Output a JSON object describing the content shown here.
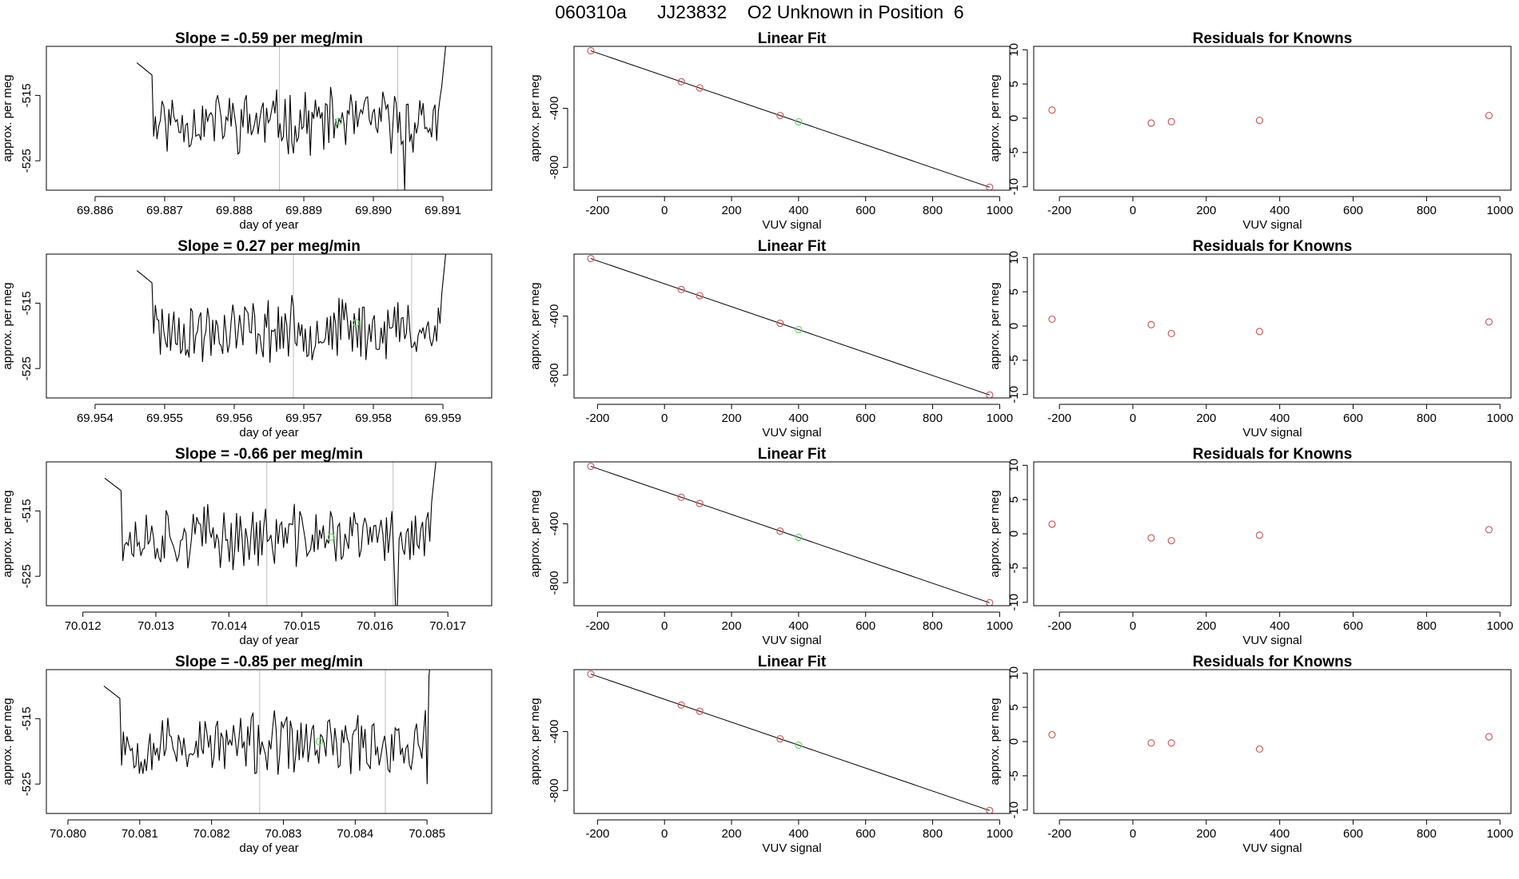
{
  "header": {
    "run_id": "060310a",
    "tank_id": "JJ23832",
    "description": "O2 Unknown in Position  6"
  },
  "colors": {
    "line": "#000000",
    "guide": "#bebebe",
    "known_point": "#cd5c5c",
    "unknown_point": "#66dd66"
  },
  "chart_data": [
    {
      "type": "line",
      "row": 0,
      "panel": "timeseries",
      "title": "Slope =  -0.59  per meg/min",
      "xlabel": "day of year",
      "ylabel": "approx. per meg",
      "xlim": [
        69.8853,
        69.8917
      ],
      "ylim": [
        -529.5,
        -507.5
      ],
      "xticks": [
        69.886,
        69.887,
        69.888,
        69.889,
        69.89,
        69.891
      ],
      "xtick_labels": [
        "69.886",
        "69.887",
        "69.888",
        "69.889",
        "69.890",
        "69.891"
      ],
      "yticks": [
        -525,
        -515
      ],
      "ytick_labels": [
        "-525",
        "-515"
      ],
      "x_start": 69.8866,
      "x_end": 69.8912,
      "seed": 11,
      "spike_at": 69.89045,
      "spike_value": -529.5,
      "vlines": [
        69.88865,
        69.89035
      ],
      "unknown_point": {
        "x": 69.8895,
        "y": -519.0
      }
    },
    {
      "type": "line",
      "row": 1,
      "panel": "timeseries",
      "title": "Slope =  0.27  per meg/min",
      "xlabel": "day of year",
      "ylabel": "approx. per meg",
      "xlim": [
        69.9533,
        69.9597
      ],
      "ylim": [
        -529.5,
        -507.5
      ],
      "xticks": [
        69.954,
        69.955,
        69.956,
        69.957,
        69.958,
        69.959
      ],
      "xtick_labels": [
        "69.954",
        "69.955",
        "69.956",
        "69.957",
        "69.958",
        "69.959"
      ],
      "yticks": [
        -525,
        -515
      ],
      "ytick_labels": [
        "-525",
        "-515"
      ],
      "x_start": 69.9546,
      "x_end": 69.9592,
      "seed": 23,
      "spike_at": 69.95555,
      "spike_value": -524.0,
      "vlines": [
        69.95685,
        69.95855
      ],
      "unknown_point": {
        "x": 69.95775,
        "y": -518.0
      }
    },
    {
      "type": "line",
      "row": 2,
      "panel": "timeseries",
      "title": "Slope =  -0.66  per meg/min",
      "xlabel": "day of year",
      "ylabel": "approx. per meg",
      "xlim": [
        70.0115,
        70.0176
      ],
      "ylim": [
        -529.5,
        -507.5
      ],
      "xticks": [
        70.012,
        70.013,
        70.014,
        70.015,
        70.016,
        70.017
      ],
      "xtick_labels": [
        "70.012",
        "70.013",
        "70.014",
        "70.015",
        "70.016",
        "70.017"
      ],
      "yticks": [
        -525,
        -515
      ],
      "ytick_labels": [
        "-525",
        "-515"
      ],
      "x_start": 70.0123,
      "x_end": 70.017,
      "seed": 37,
      "spike_at": 70.0163,
      "spike_value": -529.5,
      "vlines": [
        70.01452,
        70.01625
      ],
      "unknown_point": {
        "x": 70.0154,
        "y": -519.0
      }
    },
    {
      "type": "line",
      "row": 3,
      "panel": "timeseries",
      "title": "Slope =  -0.85  per meg/min",
      "xlabel": "day of year",
      "ylabel": "approx. per meg",
      "xlim": [
        70.0797,
        70.0859
      ],
      "ylim": [
        -529.5,
        -507.5
      ],
      "xticks": [
        70.08,
        70.081,
        70.082,
        70.083,
        70.084,
        70.085
      ],
      "xtick_labels": [
        "70.080",
        "70.081",
        "70.082",
        "70.083",
        "70.084",
        "70.085"
      ],
      "yticks": [
        -525,
        -515
      ],
      "ytick_labels": [
        "-525",
        "-515"
      ],
      "x_start": 70.0805,
      "x_end": 70.0852,
      "seed": 53,
      "spike_at": 70.085,
      "spike_value": -525.0,
      "vlines": [
        70.08267,
        70.08442
      ],
      "unknown_point": {
        "x": 70.0835,
        "y": -518.5
      }
    },
    {
      "type": "scatter",
      "row": 0,
      "panel": "fit",
      "title": "Linear Fit",
      "xlabel": "VUV signal",
      "ylabel": "approx. per meg",
      "xlim": [
        -270,
        1030
      ],
      "ylim": [
        -955,
        20
      ],
      "xticks": [
        -200,
        0,
        200,
        400,
        600,
        800,
        1000
      ],
      "yticks": [
        -800,
        -400
      ],
      "fit_line": {
        "x": [
          -220,
          970
        ],
        "y": [
          -10,
          -935
        ]
      },
      "knowns": {
        "x": [
          -220,
          50,
          105,
          345,
          970
        ],
        "y": [
          -10,
          -220,
          -262,
          -449,
          -935
        ]
      },
      "unknown": {
        "x": 400,
        "y": -492
      }
    },
    {
      "type": "scatter",
      "row": 1,
      "panel": "fit",
      "title": "Linear Fit",
      "xlabel": "VUV signal",
      "ylabel": "approx. per meg",
      "xlim": [
        -270,
        1030
      ],
      "ylim": [
        -955,
        20
      ],
      "xticks": [
        -200,
        0,
        200,
        400,
        600,
        800,
        1000
      ],
      "yticks": [
        -800,
        -400
      ],
      "fit_line": {
        "x": [
          -220,
          970
        ],
        "y": [
          -10,
          -935
        ]
      },
      "knowns": {
        "x": [
          -220,
          50,
          105,
          345,
          970
        ],
        "y": [
          -10,
          -220,
          -262,
          -449,
          -935
        ]
      },
      "unknown": {
        "x": 400,
        "y": -492
      }
    },
    {
      "type": "scatter",
      "row": 2,
      "panel": "fit",
      "title": "Linear Fit",
      "xlabel": "VUV signal",
      "ylabel": "approx. per meg",
      "xlim": [
        -270,
        1030
      ],
      "ylim": [
        -955,
        20
      ],
      "xticks": [
        -200,
        0,
        200,
        400,
        600,
        800,
        1000
      ],
      "yticks": [
        -800,
        -400
      ],
      "fit_line": {
        "x": [
          -220,
          970
        ],
        "y": [
          -10,
          -935
        ]
      },
      "knowns": {
        "x": [
          -220,
          50,
          105,
          345,
          970
        ],
        "y": [
          -10,
          -220,
          -262,
          -449,
          -935
        ]
      },
      "unknown": {
        "x": 400,
        "y": -492
      }
    },
    {
      "type": "scatter",
      "row": 3,
      "panel": "fit",
      "title": "Linear Fit",
      "xlabel": "VUV signal",
      "ylabel": "approx. per meg",
      "xlim": [
        -270,
        1030
      ],
      "ylim": [
        -955,
        20
      ],
      "xticks": [
        -200,
        0,
        200,
        400,
        600,
        800,
        1000
      ],
      "yticks": [
        -800,
        -400
      ],
      "fit_line": {
        "x": [
          -220,
          970
        ],
        "y": [
          -10,
          -935
        ]
      },
      "knowns": {
        "x": [
          -220,
          50,
          105,
          345,
          970
        ],
        "y": [
          -10,
          -220,
          -262,
          -449,
          -935
        ]
      },
      "unknown": {
        "x": 400,
        "y": -492
      }
    },
    {
      "type": "scatter",
      "row": 0,
      "panel": "residuals",
      "title": "Residuals for Knowns",
      "xlabel": "VUV signal",
      "ylabel": "approx. per meg",
      "xlim": [
        -270,
        1030
      ],
      "ylim": [
        -10.5,
        10.5
      ],
      "xticks": [
        -200,
        0,
        200,
        400,
        600,
        800,
        1000
      ],
      "yticks": [
        -10,
        -5,
        0,
        5,
        10
      ],
      "points": {
        "x": [
          -220,
          50,
          105,
          345,
          970
        ],
        "y": [
          1.2,
          -0.7,
          -0.5,
          -0.3,
          0.4
        ]
      }
    },
    {
      "type": "scatter",
      "row": 1,
      "panel": "residuals",
      "title": "Residuals for Knowns",
      "xlabel": "VUV signal",
      "ylabel": "approx. per meg",
      "xlim": [
        -270,
        1030
      ],
      "ylim": [
        -10.5,
        10.5
      ],
      "xticks": [
        -200,
        0,
        200,
        400,
        600,
        800,
        1000
      ],
      "yticks": [
        -10,
        -5,
        0,
        5,
        10
      ],
      "points": {
        "x": [
          -220,
          50,
          105,
          345,
          970
        ],
        "y": [
          1.0,
          0.2,
          -1.1,
          -0.8,
          0.6
        ]
      }
    },
    {
      "type": "scatter",
      "row": 2,
      "panel": "residuals",
      "title": "Residuals for Knowns",
      "xlabel": "VUV signal",
      "ylabel": "approx. per meg",
      "xlim": [
        -270,
        1030
      ],
      "ylim": [
        -10.5,
        10.5
      ],
      "xticks": [
        -200,
        0,
        200,
        400,
        600,
        800,
        1000
      ],
      "yticks": [
        -10,
        -5,
        0,
        5,
        10
      ],
      "points": {
        "x": [
          -220,
          50,
          105,
          345,
          970
        ],
        "y": [
          1.4,
          -0.6,
          -1.0,
          -0.2,
          0.6
        ]
      }
    },
    {
      "type": "scatter",
      "row": 3,
      "panel": "residuals",
      "title": "Residuals for Knowns",
      "xlabel": "VUV signal",
      "ylabel": "approx. per meg",
      "xlim": [
        -270,
        1030
      ],
      "ylim": [
        -10.5,
        10.5
      ],
      "xticks": [
        -200,
        0,
        200,
        400,
        600,
        800,
        1000
      ],
      "yticks": [
        -10,
        -5,
        0,
        5,
        10
      ],
      "points": {
        "x": [
          -220,
          50,
          105,
          345,
          970
        ],
        "y": [
          1.0,
          -0.2,
          -0.2,
          -1.1,
          0.7
        ]
      }
    }
  ]
}
